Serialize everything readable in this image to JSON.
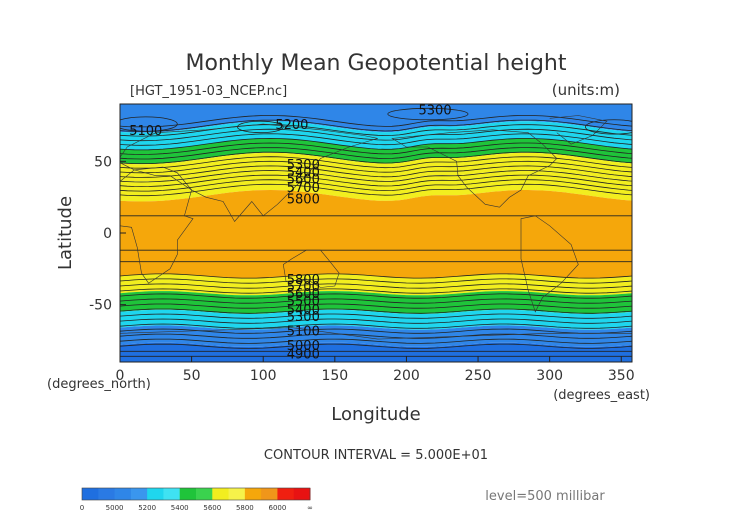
{
  "chart_data": {
    "type": "heatmap",
    "title": "Monthly Mean Geopotential height",
    "subtitle": "[HGT_1951-03_NCEP.nc]",
    "units": "(units:m)",
    "xlabel": "Longitude",
    "ylabel": "Latitude",
    "x_unit_label": "(degrees_east)",
    "y_unit_label": "(degrees_north)",
    "xlim": [
      0,
      357.5
    ],
    "ylim": [
      -90,
      90
    ],
    "x_ticks": [
      0,
      50,
      100,
      150,
      200,
      250,
      300,
      350
    ],
    "y_ticks": [
      -50,
      0,
      50
    ],
    "contour_interval_text": "CONTOUR INTERVAL = 5.000E+01",
    "level_text": "level=500 millibar",
    "fill_levels": [
      {
        "min": 0,
        "max": 5000,
        "color": "#1f6fe0"
      },
      {
        "min": 5000,
        "max": 5200,
        "color": "#2f86e8"
      },
      {
        "min": 5200,
        "max": 5400,
        "color": "#1fd6ee"
      },
      {
        "min": 5400,
        "max": 5600,
        "color": "#1fc43a"
      },
      {
        "min": 5600,
        "max": 5800,
        "color": "#f2ee1f"
      },
      {
        "min": 5800,
        "max": 6000,
        "color": "#f5a70b"
      },
      {
        "min": 6000,
        "max": 99999,
        "color": "#f01f10"
      }
    ],
    "zonal_bands": [
      {
        "lat_max": 90,
        "lat_min": 74,
        "value": 5150
      },
      {
        "lat_max": 74,
        "lat_min": 62,
        "value": 5300
      },
      {
        "lat_max": 62,
        "lat_min": 52,
        "value": 5450
      },
      {
        "lat_max": 52,
        "lat_min": 40,
        "value": 5650
      },
      {
        "lat_max": 40,
        "lat_min": 26,
        "value": 5700
      },
      {
        "lat_max": 26,
        "lat_min": -30,
        "value": 5850
      },
      {
        "lat_max": -30,
        "lat_min": -42,
        "value": 5700
      },
      {
        "lat_max": -42,
        "lat_min": -55,
        "value": 5500
      },
      {
        "lat_max": -55,
        "lat_min": -66,
        "value": 5300
      },
      {
        "lat_max": -66,
        "lat_min": -78,
        "value": 5100
      },
      {
        "lat_max": -78,
        "lat_min": -90,
        "value": 4950
      }
    ],
    "contour_labels": [
      {
        "text": "5300",
        "lon": 220,
        "lat": 86
      },
      {
        "text": "5100",
        "lon": 18,
        "lat": 72
      },
      {
        "text": "5200",
        "lon": 120,
        "lat": 76
      },
      {
        "text": "5300",
        "lon": 128,
        "lat": 48
      },
      {
        "text": "5400",
        "lon": 128,
        "lat": 43
      },
      {
        "text": "5600",
        "lon": 128,
        "lat": 38
      },
      {
        "text": "5700",
        "lon": 128,
        "lat": 32
      },
      {
        "text": "5800",
        "lon": 128,
        "lat": 24
      },
      {
        "text": "5800",
        "lon": 128,
        "lat": -32
      },
      {
        "text": "5700",
        "lon": 128,
        "lat": -37
      },
      {
        "text": "5600",
        "lon": 128,
        "lat": -42
      },
      {
        "text": "5500",
        "lon": 128,
        "lat": -47
      },
      {
        "text": "5400",
        "lon": 128,
        "lat": -53
      },
      {
        "text": "5300",
        "lon": 128,
        "lat": -58
      },
      {
        "text": "5100",
        "lon": 128,
        "lat": -68
      },
      {
        "text": "5000",
        "lon": 128,
        "lat": -78
      },
      {
        "text": "4900",
        "lon": 128,
        "lat": -84
      }
    ],
    "colorbar": {
      "labels": [
        "0",
        "5000",
        "5200",
        "5400",
        "5600",
        "5800",
        "6000",
        "∞"
      ]
    }
  }
}
